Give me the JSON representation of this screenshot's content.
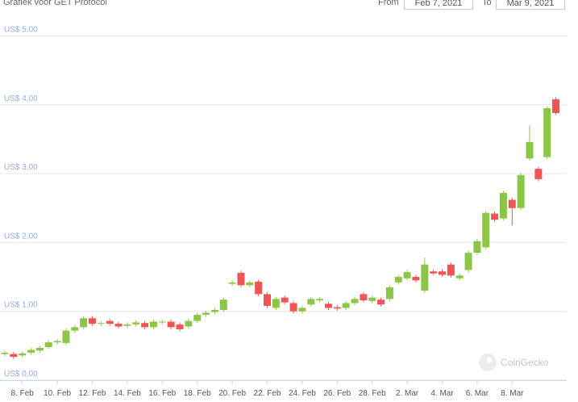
{
  "header": {
    "title": "Grafiek voor GET Protocol",
    "from_label": "From",
    "from_value": "Feb 7, 2021",
    "to_label": "To",
    "to_value": "Mar 9, 2021"
  },
  "watermark": "CoinGecko",
  "chart_data": {
    "type": "candlestick",
    "up_color": "#8dc647",
    "down_color": "#f05555",
    "grid": true,
    "ylim": [
      0,
      5
    ],
    "yticks": [
      {
        "value": 0,
        "label": "US$ 0,00"
      },
      {
        "value": 1,
        "label": "US$ 1,00"
      },
      {
        "value": 2,
        "label": "US$ 2,00"
      },
      {
        "value": 3,
        "label": "US$ 3,00"
      },
      {
        "value": 4,
        "label": "US$ 4,00"
      },
      {
        "value": 5,
        "label": "US$ 5,00"
      }
    ],
    "categories": [
      null,
      null,
      "8. Feb",
      null,
      null,
      null,
      "10. Feb",
      null,
      null,
      null,
      "12. Feb",
      null,
      null,
      null,
      "14. Feb",
      null,
      null,
      null,
      "16. Feb",
      null,
      null,
      null,
      "18. Feb",
      null,
      null,
      null,
      "20. Feb",
      null,
      null,
      null,
      "22. Feb",
      null,
      null,
      null,
      "24. Feb",
      null,
      null,
      null,
      "26. Feb",
      null,
      null,
      null,
      "28. Feb",
      null,
      null,
      null,
      "2. Mar",
      null,
      null,
      null,
      "4. Mar",
      null,
      null,
      null,
      "6. Mar",
      null,
      null,
      null,
      "8. Mar",
      null,
      null,
      null,
      null,
      null
    ],
    "open": [
      0.38,
      0.38,
      0.36,
      0.4,
      0.43,
      0.48,
      0.55,
      0.54,
      0.72,
      0.77,
      0.9,
      0.82,
      0.86,
      0.82,
      0.79,
      0.81,
      0.83,
      0.77,
      0.84,
      0.85,
      0.81,
      0.78,
      0.86,
      0.95,
      0.99,
      1.02,
      1.4,
      1.56,
      1.38,
      1.43,
      1.25,
      1.05,
      1.2,
      1.12,
      1.0,
      1.1,
      1.16,
      1.11,
      1.06,
      1.05,
      1.12,
      1.25,
      1.15,
      1.17,
      1.18,
      1.42,
      1.48,
      1.5,
      1.3,
      1.58,
      1.58,
      1.68,
      1.48,
      1.6,
      1.85,
      1.93,
      2.42,
      2.35,
      2.62,
      2.5,
      3.22,
      3.07,
      3.24,
      4.08
    ],
    "high": [
      0.43,
      0.41,
      0.42,
      0.47,
      0.5,
      0.58,
      0.6,
      0.75,
      0.8,
      0.93,
      0.93,
      0.86,
      0.89,
      0.85,
      0.84,
      0.87,
      0.86,
      0.88,
      0.88,
      0.88,
      0.84,
      0.89,
      0.98,
      1.01,
      1.05,
      1.2,
      1.45,
      1.59,
      1.45,
      1.46,
      1.28,
      1.21,
      1.23,
      1.15,
      1.08,
      1.21,
      1.21,
      1.14,
      1.09,
      1.15,
      1.21,
      1.28,
      1.23,
      1.2,
      1.38,
      1.53,
      1.6,
      1.53,
      1.78,
      1.61,
      1.61,
      1.71,
      1.55,
      1.88,
      2.05,
      2.46,
      2.45,
      2.75,
      2.65,
      3.01,
      3.7,
      3.1,
      3.98,
      4.11
    ],
    "low": [
      0.35,
      0.31,
      0.33,
      0.37,
      0.4,
      0.45,
      0.52,
      0.51,
      0.69,
      0.74,
      0.79,
      0.79,
      0.79,
      0.75,
      0.76,
      0.78,
      0.74,
      0.74,
      0.81,
      0.74,
      0.71,
      0.75,
      0.83,
      0.92,
      0.96,
      0.99,
      1.37,
      1.35,
      1.35,
      1.22,
      1.05,
      1.02,
      1.1,
      0.97,
      0.97,
      1.07,
      1.13,
      1.02,
      1.01,
      1.02,
      1.09,
      1.13,
      1.12,
      1.07,
      1.15,
      1.39,
      1.45,
      1.42,
      1.27,
      1.52,
      1.5,
      1.49,
      1.45,
      1.57,
      1.82,
      1.9,
      2.3,
      2.32,
      2.25,
      2.47,
      3.19,
      2.89,
      3.21,
      3.85
    ],
    "close": [
      0.4,
      0.34,
      0.39,
      0.44,
      0.47,
      0.55,
      0.57,
      0.72,
      0.77,
      0.9,
      0.82,
      0.83,
      0.82,
      0.78,
      0.81,
      0.84,
      0.77,
      0.85,
      0.85,
      0.77,
      0.74,
      0.86,
      0.95,
      0.98,
      1.02,
      1.17,
      1.42,
      1.38,
      1.42,
      1.25,
      1.08,
      1.18,
      1.13,
      1.0,
      1.05,
      1.18,
      1.18,
      1.05,
      1.04,
      1.12,
      1.18,
      1.16,
      1.2,
      1.1,
      1.35,
      1.5,
      1.57,
      1.45,
      1.68,
      1.55,
      1.53,
      1.52,
      1.52,
      1.85,
      2.02,
      2.43,
      2.33,
      2.72,
      2.5,
      2.98,
      3.46,
      2.92,
      3.95,
      3.88
    ]
  }
}
